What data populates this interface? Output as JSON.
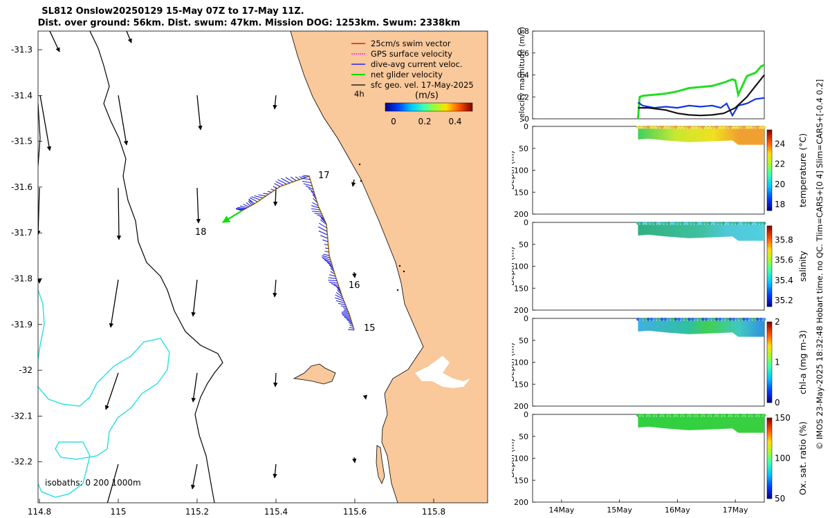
{
  "title_line1": "SL812 Onslow20250129 15-May 07Z to 17-May 11Z.",
  "title_line2": "Dist. over ground: 56km. Dist. swum: 47km. Mission DOG: 1253km. Swum: 2338km",
  "map": {
    "lon_ticks": [
      "114.8",
      "115",
      "115.2",
      "115.4",
      "115.6",
      "115.8"
    ],
    "lat_ticks": [
      "-31.3",
      "-31.4",
      "-31.5",
      "-31.6",
      "-31.7",
      "-31.8",
      "-31.9",
      "-32",
      "-32.1",
      "-32.2"
    ],
    "legend": [
      {
        "label": "25cm/s swim vector",
        "color": "#cc0000"
      },
      {
        "label": "GPS surface velocity",
        "color": "#ff00ff"
      },
      {
        "label": "dive-avg current veloc.",
        "color": "#0000ff"
      },
      {
        "label": "net glider velocity",
        "color": "#00dd00"
      },
      {
        "label": "sfc geo. vel. 17-May-2025",
        "color": "#000000"
      }
    ],
    "ref_label": "4h",
    "colorbar_title": "(m/s)",
    "colorbar_ticks": [
      "0",
      "0.2",
      "0.4"
    ],
    "day_labels": [
      "17",
      "18",
      "16",
      "15"
    ],
    "isobaths_label": "isobaths: 0   200  1000m",
    "land_color": "#f9c89b",
    "isobath_color": "#33e0e0"
  },
  "chart_data": [
    {
      "type": "line",
      "title": "",
      "ylabel": "velocity magnitude (m/s)",
      "ylim": [
        0,
        0.8
      ],
      "yticks": [
        "0",
        "0.2",
        "0.4",
        "0.6",
        "0.8"
      ],
      "x_range_days": [
        13.5,
        17.5
      ],
      "series": [
        {
          "name": "net glider velocity",
          "color": "#22dd22",
          "x": [
            15.32,
            15.35,
            15.4,
            15.6,
            15.8,
            16.0,
            16.2,
            16.4,
            16.6,
            16.8,
            16.95,
            17.0,
            17.05,
            17.2,
            17.35,
            17.45,
            17.5
          ],
          "values": [
            0.0,
            0.2,
            0.21,
            0.22,
            0.23,
            0.25,
            0.28,
            0.29,
            0.3,
            0.33,
            0.36,
            0.35,
            0.22,
            0.39,
            0.42,
            0.48,
            0.49
          ]
        },
        {
          "name": "dive-avg current veloc.",
          "color": "#1133dd",
          "x": [
            15.32,
            15.4,
            15.6,
            15.8,
            16.0,
            16.2,
            16.4,
            16.6,
            16.75,
            16.85,
            16.95,
            17.05,
            17.2,
            17.35,
            17.5
          ],
          "values": [
            0.15,
            0.12,
            0.1,
            0.11,
            0.1,
            0.12,
            0.11,
            0.12,
            0.1,
            0.14,
            0.03,
            0.12,
            0.14,
            0.18,
            0.19
          ]
        },
        {
          "name": "sfc geo. vel.",
          "color": "#111111",
          "x": [
            15.32,
            15.5,
            15.8,
            16.0,
            16.2,
            16.4,
            16.6,
            16.8,
            17.0,
            17.2,
            17.35,
            17.5
          ],
          "values": [
            0.1,
            0.1,
            0.08,
            0.05,
            0.035,
            0.03,
            0.035,
            0.05,
            0.1,
            0.2,
            0.3,
            0.4
          ]
        }
      ]
    },
    {
      "type": "heatmap",
      "ylabel": "Depth (m)",
      "ylim": [
        200,
        0
      ],
      "colorbar_label": "temperature (°C)",
      "colorbar_ticks": [
        "18",
        "20",
        "22",
        "24"
      ],
      "x_range_days": [
        15.32,
        17.5
      ]
    },
    {
      "type": "heatmap",
      "ylabel": "Depth (m)",
      "ylim": [
        200,
        0
      ],
      "colorbar_label": "salinity",
      "colorbar_ticks": [
        "35.2",
        "35.4",
        "35.6",
        "35.8"
      ],
      "x_range_days": [
        15.32,
        17.5
      ]
    },
    {
      "type": "heatmap",
      "ylabel": "Depth (m)",
      "ylim": [
        200,
        0
      ],
      "colorbar_label": "chl-a (mg m-3)",
      "colorbar_ticks": [
        "0",
        "1",
        "2"
      ],
      "x_range_days": [
        15.32,
        17.5
      ]
    },
    {
      "type": "heatmap",
      "ylabel": "Depth (m)",
      "ylim": [
        200,
        0
      ],
      "colorbar_label": "Ox. sat. ratio (%)",
      "colorbar_ticks": [
        "50",
        "100",
        "150"
      ],
      "x_range_days": [
        15.32,
        17.5
      ]
    }
  ],
  "depth_ticks": [
    "0",
    "50",
    "100",
    "150",
    "200"
  ],
  "time_ticks": [
    "14May",
    "15May",
    "16May",
    "17May"
  ],
  "side_note": "© IMOS 23-May-2025 18:32:48 Hobart time. no QC. Tlim=CARS+[0 4] Slim=CARS+[-0.4 0.2]"
}
